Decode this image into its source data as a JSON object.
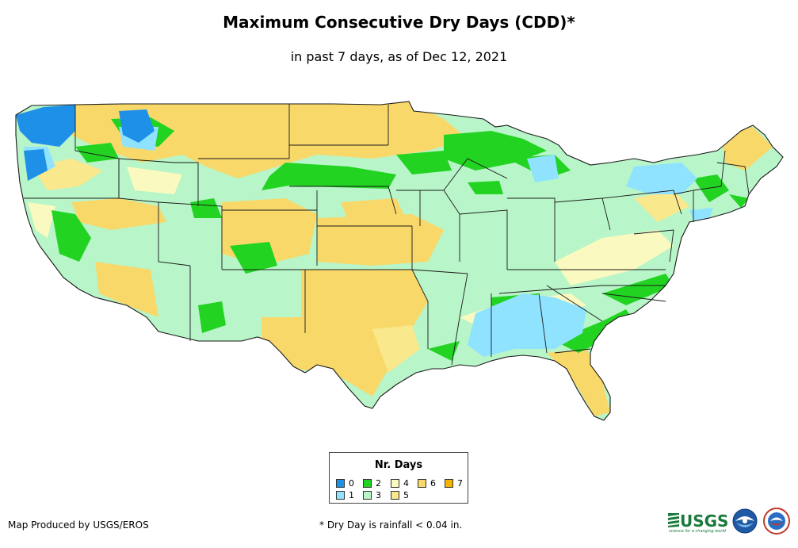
{
  "header": {
    "title": "Maximum Consecutive Dry Days (CDD)*",
    "subtitle": "in past 7 days, as of Dec 12, 2021"
  },
  "legend": {
    "title": "Nr. Days",
    "items": [
      {
        "label": "0",
        "color": "#1e90e8"
      },
      {
        "label": "1",
        "color": "#8fe3ff"
      },
      {
        "label": "2",
        "color": "#22d322"
      },
      {
        "label": "3",
        "color": "#b8f5c8"
      },
      {
        "label": "4",
        "color": "#fafac0"
      },
      {
        "label": "5",
        "color": "#fae88c"
      },
      {
        "label": "6",
        "color": "#f9d86a"
      },
      {
        "label": "7",
        "color": "#f4b400"
      }
    ]
  },
  "footer": {
    "credit": "Map Produced by USGS/EROS",
    "note": "* Dry Day is rainfall < 0.04 in.",
    "usgs_text": "USGS",
    "usgs_tagline": "science for a changing world"
  },
  "logos": {
    "usgs": "usgs-logo",
    "noaa": "noaa-logo",
    "nws": "nws-logo"
  },
  "colors": {
    "state_border": "#1a1a1a",
    "background": "#ffffff"
  }
}
